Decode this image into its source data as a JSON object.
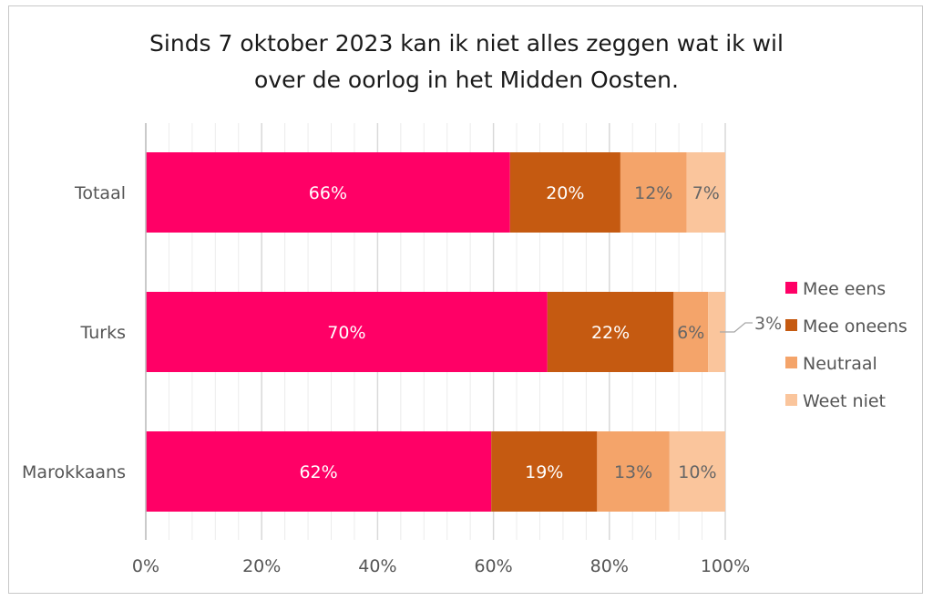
{
  "chart_data": {
    "type": "bar",
    "orientation": "horizontal",
    "stacked": true,
    "title_lines": [
      "Sinds 7 oktober 2023 kan ik niet alles zeggen wat ik wil",
      "over de oorlog in het Midden Oosten."
    ],
    "categories": [
      "Totaal",
      "Turks",
      "Marokkaans"
    ],
    "series": [
      {
        "name": "Mee eens",
        "color": "#ff0066",
        "label_color": "#ffffff",
        "values": [
          66,
          70,
          62
        ],
        "labels": [
          "66%",
          "70%",
          "62%"
        ]
      },
      {
        "name": "Mee oneens",
        "color": "#c55a11",
        "label_color": "#ffffff",
        "values": [
          20,
          22,
          19
        ],
        "labels": [
          "20%",
          "22%",
          "19%"
        ]
      },
      {
        "name": "Neutraal",
        "color": "#f4a46a",
        "label_color": "#666666",
        "values": [
          12,
          6,
          13
        ],
        "labels": [
          "12%",
          "6%",
          "13%"
        ]
      },
      {
        "name": "Weet niet",
        "color": "#fac59c",
        "label_color": "#666666",
        "values": [
          7,
          3,
          10
        ],
        "labels": [
          "7%",
          "3%",
          "10%"
        ]
      }
    ],
    "xlim": [
      0,
      100
    ],
    "x_ticks": [
      "0%",
      "20%",
      "40%",
      "60%",
      "80%",
      "100%"
    ],
    "grid": true,
    "legend_position": "right"
  }
}
